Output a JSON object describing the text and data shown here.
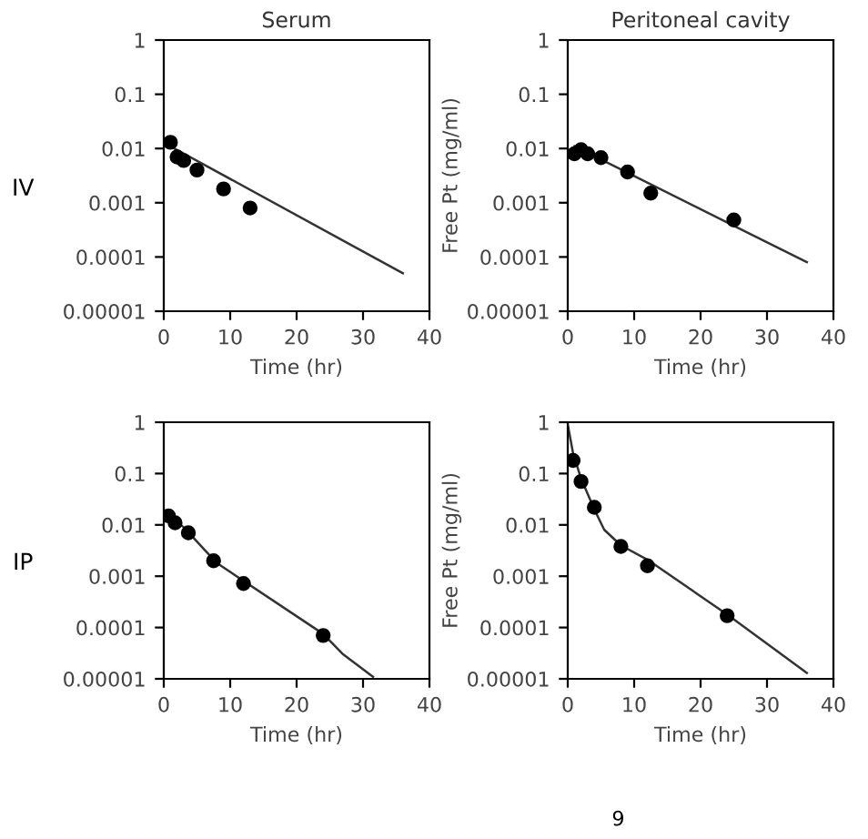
{
  "chart_data": [
    {
      "type": "scatter",
      "title": "Serum",
      "xlabel": "Time (hr)",
      "annotations": [
        "IV"
      ],
      "grid": false,
      "log": "y",
      "xlim": [
        0,
        40
      ],
      "xticks": [
        0,
        10,
        20,
        30,
        40
      ],
      "ylim": [
        1e-05,
        1
      ],
      "yticks": [
        {
          "value": 1e-05,
          "label": "0.00001"
        },
        {
          "value": 0.0001,
          "label": "0.0001"
        },
        {
          "value": 0.001,
          "label": "0.001"
        },
        {
          "value": 0.01,
          "label": "0.01"
        },
        {
          "value": 0.1,
          "label": "0.1"
        },
        {
          "value": 1,
          "label": "1"
        }
      ],
      "series": [
        {
          "marker": "circle",
          "color": "#000000",
          "x": [
            1,
            2,
            3,
            5,
            9,
            13
          ],
          "values": [
            0.013,
            0.007,
            0.006,
            0.004,
            0.0018,
            0.0008
          ]
        },
        {
          "type": "line",
          "color": "#333333",
          "x": [
            1,
            36
          ],
          "values": [
            0.011,
            5e-05
          ]
        }
      ]
    },
    {
      "type": "scatter",
      "title": "Peritoneal cavity",
      "xlabel": "Time (hr)",
      "ylabel": "Free Pt (mg/ml)",
      "grid": false,
      "log": "y",
      "xlim": [
        0,
        40
      ],
      "xticks": [
        0,
        10,
        20,
        30,
        40
      ],
      "ylim": [
        1e-05,
        1
      ],
      "yticks": [
        {
          "value": 1e-05,
          "label": "0.00001"
        },
        {
          "value": 0.0001,
          "label": "0.0001"
        },
        {
          "value": 0.001,
          "label": "0.001"
        },
        {
          "value": 0.01,
          "label": "0.01"
        },
        {
          "value": 0.1,
          "label": "0.1"
        },
        {
          "value": 1,
          "label": "1"
        }
      ],
      "series": [
        {
          "marker": "circle",
          "color": "#000000",
          "x": [
            1,
            2,
            3,
            5,
            9,
            12.5,
            25
          ],
          "values": [
            0.008,
            0.0095,
            0.008,
            0.0068,
            0.0037,
            0.0015,
            0.00048
          ]
        },
        {
          "type": "line",
          "color": "#333333",
          "x": [
            1,
            36
          ],
          "values": [
            0.011,
            8e-05
          ]
        }
      ]
    },
    {
      "type": "scatter",
      "xlabel": "Time (hr)",
      "annotations": [
        "IP"
      ],
      "grid": false,
      "log": "y",
      "xlim": [
        0,
        40
      ],
      "xticks": [
        0,
        10,
        20,
        30,
        40
      ],
      "ylim": [
        1e-05,
        1
      ],
      "yticks": [
        {
          "value": 1e-05,
          "label": "0.00001"
        },
        {
          "value": 0.0001,
          "label": "0.0001"
        },
        {
          "value": 0.001,
          "label": "0.001"
        },
        {
          "value": 0.01,
          "label": "0.01"
        },
        {
          "value": 0.1,
          "label": "0.1"
        },
        {
          "value": 1,
          "label": "1"
        }
      ],
      "series": [
        {
          "marker": "circle",
          "color": "#000000",
          "x": [
            0.7,
            1.7,
            3.7,
            7.5,
            12,
            24
          ],
          "values": [
            0.015,
            0.011,
            0.007,
            0.002,
            0.00072,
            7e-05
          ]
        },
        {
          "type": "line",
          "color": "#333333",
          "x": [
            0.5,
            3,
            8,
            24,
            27,
            31.5
          ],
          "values": [
            0.016,
            0.009,
            0.0018,
            7.5e-05,
            3e-05,
            1.1e-05
          ]
        }
      ]
    },
    {
      "type": "scatter",
      "xlabel": "Time (hr)",
      "ylabel": "Free Pt (mg/ml)",
      "annotations": [
        "9"
      ],
      "grid": false,
      "log": "y",
      "xlim": [
        0,
        40
      ],
      "xticks": [
        0,
        10,
        20,
        30,
        40
      ],
      "ylim": [
        1e-05,
        1
      ],
      "yticks": [
        {
          "value": 1e-05,
          "label": "0.00001"
        },
        {
          "value": 0.0001,
          "label": "0.0001"
        },
        {
          "value": 0.001,
          "label": "0.001"
        },
        {
          "value": 0.01,
          "label": "0.01"
        },
        {
          "value": 0.1,
          "label": "0.1"
        },
        {
          "value": 1,
          "label": "1"
        }
      ],
      "series": [
        {
          "marker": "circle",
          "color": "#000000",
          "x": [
            0.8,
            2,
            4,
            8,
            12,
            24
          ],
          "values": [
            0.18,
            0.07,
            0.022,
            0.0038,
            0.0016,
            0.00017
          ]
        },
        {
          "type": "line",
          "color": "#333333",
          "x": [
            0,
            0.8,
            2,
            4,
            5.5,
            8,
            12,
            24,
            36
          ],
          "values": [
            0.9,
            0.25,
            0.08,
            0.02,
            0.008,
            0.004,
            0.0021,
            0.00018,
            1.3e-05
          ]
        }
      ]
    }
  ]
}
